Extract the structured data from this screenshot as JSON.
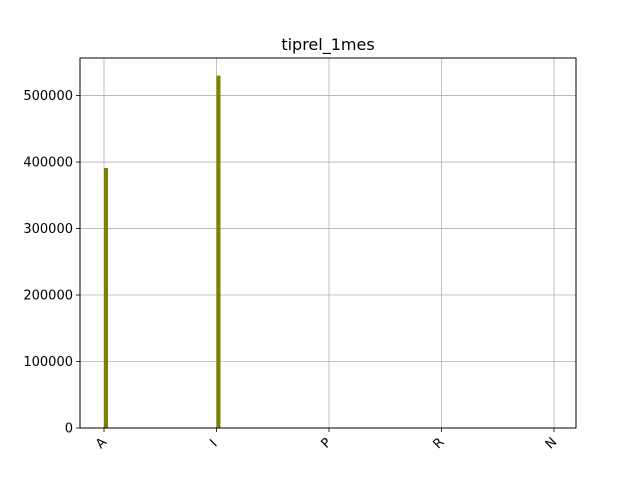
{
  "chart_data": {
    "type": "bar",
    "title": "tiprel_1mes",
    "xlabel": "",
    "ylabel": "",
    "categories": [
      "A",
      "I",
      "P",
      "R",
      "N"
    ],
    "values": [
      391000,
      530000,
      0,
      0,
      0
    ],
    "ylim": [
      0,
      556500
    ],
    "yticks": [
      0,
      100000,
      200000,
      300000,
      400000,
      500000
    ],
    "ytick_labels": [
      "0",
      "100000",
      "200000",
      "300000",
      "400000",
      "500000"
    ],
    "grid": true,
    "legend": "none",
    "colors": {
      "bar": "#808000",
      "grid": "#b0b0b0",
      "axis": "#000000"
    }
  }
}
